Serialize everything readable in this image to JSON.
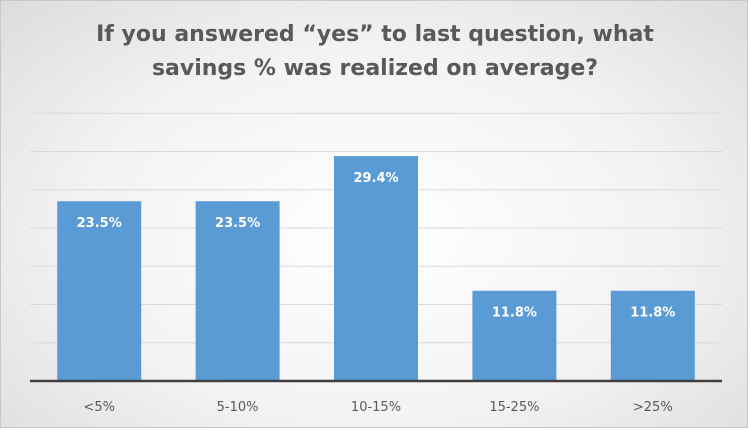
{
  "chart_data": {
    "type": "bar",
    "title": "If you answered “yes” to last question, what savings % was realized on average?",
    "categories": [
      "<5%",
      "5-10%",
      "10-15%",
      "15-25%",
      ">25%"
    ],
    "values": [
      23.5,
      23.5,
      29.4,
      11.8,
      11.8
    ],
    "data_labels": [
      "23.5%",
      "23.5%",
      "29.4%",
      "11.8%",
      "11.8%"
    ],
    "xlabel": "",
    "ylabel": "",
    "ylim": [
      0,
      35
    ],
    "grid": true,
    "legend": "none",
    "colors": {
      "bar": "#5b9bd5",
      "gridline": "#d9d9d9",
      "axis": "#404040",
      "text": "#595959"
    }
  }
}
